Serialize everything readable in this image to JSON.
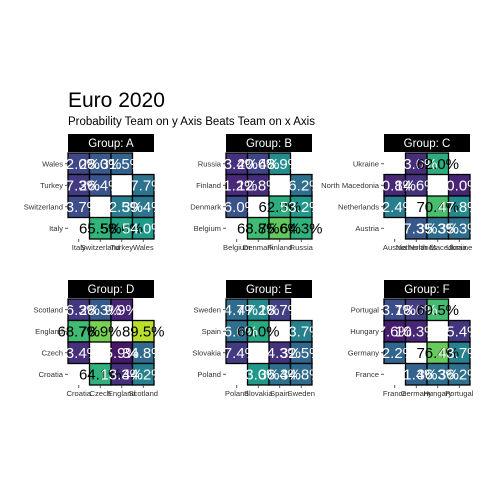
{
  "title": "Euro 2020",
  "subtitle": "Probability Team on y Axis Beats Team on x Axis",
  "chart_data": {
    "type": "heatmap",
    "title": "Euro 2020",
    "subtitle": "Probability Team on y Axis Beats Team on x Axis",
    "color_scale": "viridis",
    "value_range": [
      0,
      100
    ],
    "legend": "none",
    "grid": false,
    "panels": [
      {
        "name": "Group: A",
        "x": [
          "Italy",
          "Switzerland",
          "Turkey",
          "Wales"
        ],
        "y": [
          "Italy",
          "Switzerland",
          "Turkey",
          "Wales"
        ],
        "cells": [
          {
            "row": "Wales",
            "col": "Italy",
            "value": 22.0,
            "label": "22.0%"
          },
          {
            "row": "Wales",
            "col": "Switzerland",
            "value": 28.0,
            "label": "28.0%"
          },
          {
            "row": "Wales",
            "col": "Turkey",
            "value": 31.5,
            "label": "31.5%"
          },
          {
            "row": "Turkey",
            "col": "Italy",
            "value": 17.3,
            "label": "17.3%"
          },
          {
            "row": "Turkey",
            "col": "Switzerland",
            "value": 26.4,
            "label": "26.4%"
          },
          {
            "row": "Turkey",
            "col": "Wales",
            "value": 37.7,
            "label": "37.7%"
          },
          {
            "row": "Switzerland",
            "col": "Italy",
            "value": 23.7,
            "label": "23.7%"
          },
          {
            "row": "Switzerland",
            "col": "Turkey",
            "value": 42.5,
            "label": "42.5%"
          },
          {
            "row": "Switzerland",
            "col": "Wales",
            "value": 39.4,
            "label": "39.4%"
          },
          {
            "row": "Italy",
            "col": "Switzerland",
            "value": 65.5,
            "label": "65.5%"
          },
          {
            "row": "Italy",
            "col": "Turkey",
            "value": 58.6,
            "label": "58.6%"
          },
          {
            "row": "Italy",
            "col": "Wales",
            "value": 54.0,
            "label": "54.0%"
          }
        ]
      },
      {
        "name": "Group: B",
        "x": [
          "Belgium",
          "Denmark",
          "Finland",
          "Russia"
        ],
        "y": [
          "Belgium",
          "Denmark",
          "Finland",
          "Russia"
        ],
        "cells": [
          {
            "row": "Russia",
            "col": "Belgium",
            "value": 13.4,
            "label": "13.4%"
          },
          {
            "row": "Russia",
            "col": "Denmark",
            "value": 20.6,
            "label": "20.6%"
          },
          {
            "row": "Russia",
            "col": "Finland",
            "value": 48.9,
            "label": "48.9%"
          },
          {
            "row": "Finland",
            "col": "Belgium",
            "value": 11.2,
            "label": "11.2%"
          },
          {
            "row": "Finland",
            "col": "Denmark",
            "value": 12.8,
            "label": "12.8%"
          },
          {
            "row": "Finland",
            "col": "Russia",
            "value": 36.2,
            "label": "36.2%"
          },
          {
            "row": "Denmark",
            "col": "Belgium",
            "value": 26.0,
            "label": "26.0%"
          },
          {
            "row": "Denmark",
            "col": "Finland",
            "value": 62.3,
            "label": "62.3%"
          },
          {
            "row": "Denmark",
            "col": "Russia",
            "value": 53.2,
            "label": "53.2%"
          },
          {
            "row": "Belgium",
            "col": "Denmark",
            "value": 68.8,
            "label": "68.8%"
          },
          {
            "row": "Belgium",
            "col": "Finland",
            "value": 75.6,
            "label": "75.6%"
          },
          {
            "row": "Belgium",
            "col": "Russia",
            "value": 64.3,
            "label": "64.3%"
          }
        ]
      },
      {
        "name": "Group: C",
        "x": [
          "Austria",
          "Netherlands",
          "North Macedonia",
          "Ukraine"
        ],
        "y": [
          "Austria",
          "Netherlands",
          "North Macedonia",
          "Ukraine"
        ],
        "cells": [
          {
            "row": "Ukraine",
            "col": "Netherlands",
            "value": 13.0,
            "label": "13.0%"
          },
          {
            "row": "Ukraine",
            "col": "North Macedonia",
            "value": 62.0,
            "label": "62.0%"
          },
          {
            "row": "North Macedonia",
            "col": "Austria",
            "value": 10.8,
            "label": "10.8%"
          },
          {
            "row": "North Macedonia",
            "col": "Netherlands",
            "value": 14.6,
            "label": "14.6%"
          },
          {
            "row": "North Macedonia",
            "col": "Ukraine",
            "value": 10.0,
            "label": "10.0%"
          },
          {
            "row": "Netherlands",
            "col": "Austria",
            "value": 42.4,
            "label": "42.4%"
          },
          {
            "row": "Netherlands",
            "col": "North Macedonia",
            "value": 70.4,
            "label": "70.4%"
          },
          {
            "row": "Netherlands",
            "col": "Ukraine",
            "value": 47.8,
            "label": "47.8%"
          },
          {
            "row": "Austria",
            "col": "Netherlands",
            "value": 27.3,
            "label": "27.3%"
          },
          {
            "row": "Austria",
            "col": "North Macedonia",
            "value": 35.3,
            "label": "35.3%"
          },
          {
            "row": "Austria",
            "col": "Ukraine",
            "value": 35.3,
            "label": "35.3%"
          }
        ]
      },
      {
        "name": "Group: D",
        "x": [
          "Croatia",
          "Czech",
          "England",
          "Scotland"
        ],
        "y": [
          "Croatia",
          "Czech",
          "England",
          "Scotland"
        ],
        "cells": [
          {
            "row": "Scotland",
            "col": "Croatia",
            "value": 16.3,
            "label": "16.3%"
          },
          {
            "row": "Scotland",
            "col": "Czech",
            "value": 28.3,
            "label": "28.3%"
          },
          {
            "row": "Scotland",
            "col": "England",
            "value": 9.9,
            "label": "9.9%"
          },
          {
            "row": "England",
            "col": "Croatia",
            "value": 68.7,
            "label": "68.7%"
          },
          {
            "row": "England",
            "col": "Czech",
            "value": 78.9,
            "label": "78.9%"
          },
          {
            "row": "England",
            "col": "Scotland",
            "value": 89.5,
            "label": "89.5%"
          },
          {
            "row": "Czech",
            "col": "Croatia",
            "value": 13.4,
            "label": "13.4%"
          },
          {
            "row": "Czech",
            "col": "England",
            "value": 5.9,
            "label": "5.9%"
          },
          {
            "row": "Czech",
            "col": "Scotland",
            "value": 34.8,
            "label": "34.8%"
          },
          {
            "row": "Croatia",
            "col": "Czech",
            "value": 64.1,
            "label": "64.1%"
          },
          {
            "row": "Croatia",
            "col": "England",
            "value": 13.3,
            "label": "13.3%"
          },
          {
            "row": "Croatia",
            "col": "Scotland",
            "value": 44.2,
            "label": "44.2%"
          }
        ]
      },
      {
        "name": "Group: E",
        "x": [
          "Poland",
          "Slovakia",
          "Spain",
          "Sweden"
        ],
        "y": [
          "Poland",
          "Slovakia",
          "Spain",
          "Sweden"
        ],
        "cells": [
          {
            "row": "Sweden",
            "col": "Poland",
            "value": 34.7,
            "label": "34.7%"
          },
          {
            "row": "Sweden",
            "col": "Slovakia",
            "value": 47.2,
            "label": "47.2%"
          },
          {
            "row": "Sweden",
            "col": "Spain",
            "value": 18.7,
            "label": "18.7%"
          },
          {
            "row": "Spain",
            "col": "Poland",
            "value": 36.6,
            "label": "36.6%"
          },
          {
            "row": "Spain",
            "col": "Slovakia",
            "value": 60.0,
            "label": "60.0%"
          },
          {
            "row": "Spain",
            "col": "Sweden",
            "value": 43.7,
            "label": "43.7%"
          },
          {
            "row": "Slovakia",
            "col": "Poland",
            "value": 17.4,
            "label": "17.4%"
          },
          {
            "row": "Slovakia",
            "col": "Spain",
            "value": 14.3,
            "label": "14.3%"
          },
          {
            "row": "Slovakia",
            "col": "Sweden",
            "value": 32.5,
            "label": "32.5%"
          },
          {
            "row": "Poland",
            "col": "Slovakia",
            "value": 53.0,
            "label": "53.0%"
          },
          {
            "row": "Poland",
            "col": "Spain",
            "value": 36.4,
            "label": "36.4%"
          },
          {
            "row": "Poland",
            "col": "Sweden",
            "value": 34.8,
            "label": "34.8%"
          }
        ]
      },
      {
        "name": "Group: F",
        "x": [
          "France",
          "Germany",
          "Hungary",
          "Portugal"
        ],
        "y": [
          "France",
          "Germany",
          "Hungary",
          "Portugal"
        ],
        "cells": [
          {
            "row": "Portugal",
            "col": "France",
            "value": 23.7,
            "label": "23.7%"
          },
          {
            "row": "Portugal",
            "col": "Germany",
            "value": 18.0,
            "label": "18.0%"
          },
          {
            "row": "Portugal",
            "col": "Hungary",
            "value": 69.5,
            "label": "69.5%"
          },
          {
            "row": "Hungary",
            "col": "France",
            "value": 7.6,
            "label": "7.6%"
          },
          {
            "row": "Hungary",
            "col": "Germany",
            "value": 10.3,
            "label": "10.3%"
          },
          {
            "row": "Hungary",
            "col": "Portugal",
            "value": 15.4,
            "label": "15.4%"
          },
          {
            "row": "Germany",
            "col": "France",
            "value": 32.2,
            "label": "32.2%"
          },
          {
            "row": "Germany",
            "col": "Hungary",
            "value": 76.4,
            "label": "76.4%"
          },
          {
            "row": "Germany",
            "col": "Portugal",
            "value": 43.7,
            "label": "43.7%"
          },
          {
            "row": "France",
            "col": "Germany",
            "value": 31.4,
            "label": "31.4%"
          },
          {
            "row": "France",
            "col": "Hungary",
            "value": 36.3,
            "label": "36.3%"
          },
          {
            "row": "France",
            "col": "Portugal",
            "value": 36.2,
            "label": "36.2%"
          }
        ]
      }
    ]
  }
}
